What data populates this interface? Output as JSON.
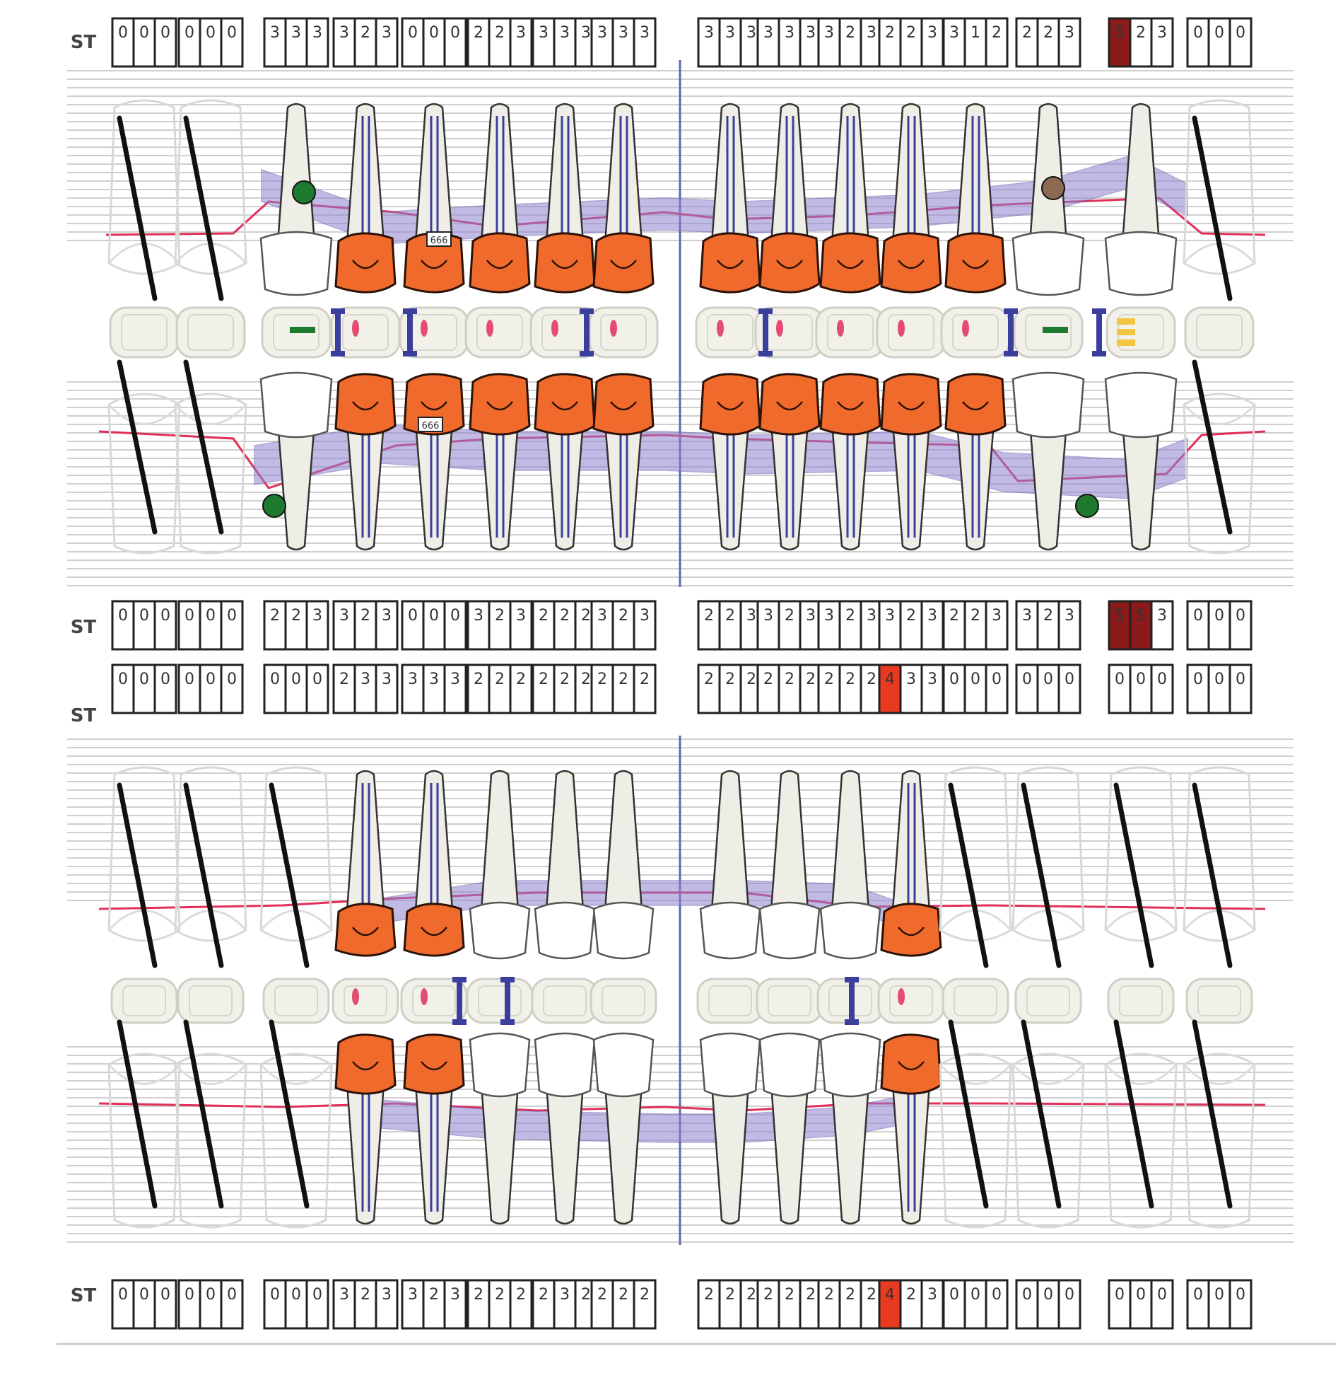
{
  "row_label": "ST",
  "colors": {
    "crown": "#f06a2c",
    "crown_outline": "#2a1208",
    "bone": "#8e83cf",
    "gingiva": "#e0305a",
    "root_canal": "#3a3f9e",
    "missing_stroke": "#111111",
    "box_dark_red": "#8b1a1a",
    "box_red": "#e83a20",
    "implant_green": "#1e7a2e"
  },
  "maxilla": {
    "buccal_values": [
      {
        "v": [
          "0",
          "0",
          "0"
        ],
        "hi": []
      },
      {
        "v": [
          "0",
          "0",
          "0"
        ],
        "hi": []
      },
      {
        "v": [
          "3",
          "3",
          "3"
        ],
        "hi": []
      },
      {
        "v": [
          "3",
          "2",
          "3"
        ],
        "hi": []
      },
      {
        "v": [
          "0",
          "0",
          "0"
        ],
        "hi": []
      },
      {
        "v": [
          "2",
          "2",
          "3"
        ],
        "hi": []
      },
      {
        "v": [
          "3",
          "3",
          "3"
        ],
        "hi": []
      },
      {
        "v": [
          "3",
          "3",
          "3"
        ],
        "hi": []
      },
      {
        "v": [
          "3",
          "3",
          "3"
        ],
        "hi": []
      },
      {
        "v": [
          "3",
          "3",
          "3"
        ],
        "hi": []
      },
      {
        "v": [
          "3",
          "2",
          "3"
        ],
        "hi": []
      },
      {
        "v": [
          "2",
          "2",
          "3"
        ],
        "hi": []
      },
      {
        "v": [
          "3",
          "1",
          "2"
        ],
        "hi": []
      },
      {
        "v": [
          "2",
          "2",
          "3"
        ],
        "hi": []
      },
      {
        "v": [
          "5",
          "2",
          "3"
        ],
        "hi": [
          0
        ]
      },
      {
        "v": [
          "0",
          "0",
          "0"
        ],
        "hi": []
      }
    ],
    "palatal_values": [
      {
        "v": [
          "0",
          "0",
          "0"
        ],
        "hi": []
      },
      {
        "v": [
          "0",
          "0",
          "0"
        ],
        "hi": []
      },
      {
        "v": [
          "2",
          "2",
          "3"
        ],
        "hi": []
      },
      {
        "v": [
          "3",
          "2",
          "3"
        ],
        "hi": []
      },
      {
        "v": [
          "0",
          "0",
          "0"
        ],
        "hi": []
      },
      {
        "v": [
          "3",
          "2",
          "3"
        ],
        "hi": []
      },
      {
        "v": [
          "2",
          "2",
          "2"
        ],
        "hi": []
      },
      {
        "v": [
          "3",
          "2",
          "3"
        ],
        "hi": []
      },
      {
        "v": [
          "2",
          "2",
          "3"
        ],
        "hi": []
      },
      {
        "v": [
          "3",
          "2",
          "3"
        ],
        "hi": []
      },
      {
        "v": [
          "3",
          "2",
          "3"
        ],
        "hi": []
      },
      {
        "v": [
          "3",
          "2",
          "3"
        ],
        "hi": []
      },
      {
        "v": [
          "2",
          "2",
          "3"
        ],
        "hi": []
      },
      {
        "v": [
          "3",
          "2",
          "3"
        ],
        "hi": []
      },
      {
        "v": [
          "5",
          "5",
          "3"
        ],
        "hi": [
          0,
          1
        ]
      },
      {
        "v": [
          "0",
          "0",
          "0"
        ],
        "hi": []
      }
    ],
    "teeth": [
      "missing",
      "missing",
      "natural",
      "crown",
      "crown-implant",
      "crown",
      "crown",
      "crown",
      "crown",
      "crown",
      "crown",
      "crown",
      "crown",
      "natural",
      "natural",
      "missing"
    ],
    "implant_markers": [
      {
        "tooth": 2,
        "jaw": "upper",
        "label": ""
      },
      {
        "tooth": 13,
        "jaw": "upper",
        "label": ""
      },
      {
        "tooth": 2,
        "jaw": "lower",
        "label": ""
      },
      {
        "tooth": 13,
        "jaw": "lower",
        "label": ""
      }
    ],
    "tag_text": "666"
  },
  "mandible": {
    "lingual_values": [
      {
        "v": [
          "0",
          "0",
          "0"
        ],
        "hi": []
      },
      {
        "v": [
          "0",
          "0",
          "0"
        ],
        "hi": []
      },
      {
        "v": [
          "0",
          "0",
          "0"
        ],
        "hi": []
      },
      {
        "v": [
          "2",
          "3",
          "3"
        ],
        "hi": []
      },
      {
        "v": [
          "3",
          "3",
          "3"
        ],
        "hi": []
      },
      {
        "v": [
          "2",
          "2",
          "2"
        ],
        "hi": []
      },
      {
        "v": [
          "2",
          "2",
          "2"
        ],
        "hi": []
      },
      {
        "v": [
          "2",
          "2",
          "2"
        ],
        "hi": []
      },
      {
        "v": [
          "2",
          "2",
          "2"
        ],
        "hi": []
      },
      {
        "v": [
          "2",
          "2",
          "2"
        ],
        "hi": []
      },
      {
        "v": [
          "2",
          "2",
          "2"
        ],
        "hi": []
      },
      {
        "v": [
          "4",
          "3",
          "3"
        ],
        "hi": [
          0
        ]
      },
      {
        "v": [
          "0",
          "0",
          "0"
        ],
        "hi": []
      },
      {
        "v": [
          "0",
          "0",
          "0"
        ],
        "hi": []
      },
      {
        "v": [
          "0",
          "0",
          "0"
        ],
        "hi": []
      },
      {
        "v": [
          "0",
          "0",
          "0"
        ],
        "hi": []
      }
    ],
    "buccal_values": [
      {
        "v": [
          "0",
          "0",
          "0"
        ],
        "hi": []
      },
      {
        "v": [
          "0",
          "0",
          "0"
        ],
        "hi": []
      },
      {
        "v": [
          "0",
          "0",
          "0"
        ],
        "hi": []
      },
      {
        "v": [
          "3",
          "2",
          "3"
        ],
        "hi": []
      },
      {
        "v": [
          "3",
          "2",
          "3"
        ],
        "hi": []
      },
      {
        "v": [
          "2",
          "2",
          "2"
        ],
        "hi": []
      },
      {
        "v": [
          "2",
          "3",
          "2"
        ],
        "hi": []
      },
      {
        "v": [
          "2",
          "2",
          "2"
        ],
        "hi": []
      },
      {
        "v": [
          "2",
          "2",
          "2"
        ],
        "hi": []
      },
      {
        "v": [
          "2",
          "2",
          "2"
        ],
        "hi": []
      },
      {
        "v": [
          "2",
          "2",
          "2"
        ],
        "hi": []
      },
      {
        "v": [
          "4",
          "2",
          "3"
        ],
        "hi": [
          0
        ]
      },
      {
        "v": [
          "0",
          "0",
          "0"
        ],
        "hi": []
      },
      {
        "v": [
          "0",
          "0",
          "0"
        ],
        "hi": []
      },
      {
        "v": [
          "0",
          "0",
          "0"
        ],
        "hi": []
      },
      {
        "v": [
          "0",
          "0",
          "0"
        ],
        "hi": []
      }
    ],
    "teeth": [
      "missing",
      "missing",
      "missing",
      "crown",
      "crown",
      "natural",
      "natural",
      "natural",
      "natural",
      "natural",
      "natural",
      "crown",
      "missing",
      "missing",
      "missing",
      "missing"
    ]
  }
}
